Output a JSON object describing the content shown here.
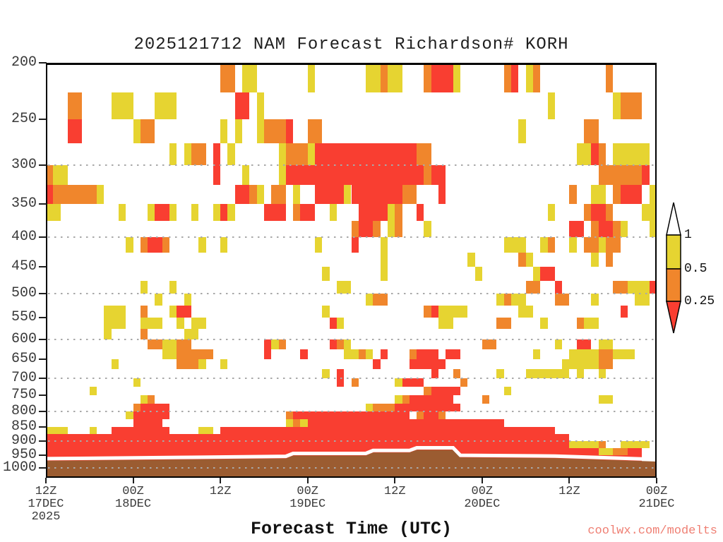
{
  "title": "2025121712 NAM Forecast Richardson# KORH",
  "x_axis": {
    "label": "Forecast Time (UTC)",
    "ticks": [
      {
        "hour": 0,
        "time": "12Z",
        "date": "17DEC",
        "year": "2025"
      },
      {
        "hour": 12,
        "time": "00Z",
        "date": "18DEC"
      },
      {
        "hour": 24,
        "time": "12Z"
      },
      {
        "hour": 36,
        "time": "00Z",
        "date": "19DEC"
      },
      {
        "hour": 48,
        "time": "12Z"
      },
      {
        "hour": 60,
        "time": "00Z",
        "date": "20DEC"
      },
      {
        "hour": 72,
        "time": "12Z"
      },
      {
        "hour": 84,
        "time": "00Z",
        "date": "21DEC"
      }
    ]
  },
  "y_axis": {
    "unit": "hPa",
    "tick_labels": [
      200,
      250,
      300,
      350,
      400,
      450,
      500,
      550,
      600,
      650,
      700,
      750,
      800,
      850,
      900,
      950,
      1000
    ],
    "gridlines": [
      300,
      400,
      500,
      600,
      700,
      800,
      900,
      1000
    ],
    "range": [
      200,
      1040
    ],
    "log_scale": true
  },
  "colorbar": {
    "labels": [
      "1",
      "0.5",
      "0.25"
    ],
    "segment_colors": [
      "#ffffff",
      "#e6d431",
      "#f0862c",
      "#f93e31"
    ]
  },
  "watermark": "coolwx.com/modelts",
  "chart_data": {
    "type": "heatmap",
    "title": "2025121712 NAM Forecast Richardson# KORH",
    "xlabel": "Forecast Time (UTC)",
    "x_start": "2025-12-17 12Z",
    "x_end": "2025-12-21 00Z",
    "hours_per_column": 1,
    "columns": 84,
    "row_top_pressure_hpa": 200,
    "row_step_hpa": 25,
    "rows": 31,
    "legend_thresholds": [
      {
        "symbol": "r",
        "meaning": "Richardson number < 0.25",
        "color": "#f93e31"
      },
      {
        "symbol": "o",
        "meaning": "0.25 - 0.5",
        "color": "#f0862c"
      },
      {
        "symbol": "y",
        "meaning": "0.5 - 1",
        "color": "#e6d431"
      },
      {
        "symbol": ".",
        "meaning": "> 1 (blank)",
        "color": "#ffffff"
      }
    ],
    "grid": [
      "........................oo.yy.......y.......yyoyy...orrry......or.yo.........o......",
      "...oo....yyy...yyy........rr.y.......................................y........yooo..y.yyy",
      "...rr.......yoo.........y.y..yooor..oo...........................y........oo........y",
      ".................y.yoo.r.y......yoooyrrrrrrrrrrrrrroo....................yyro.yyyyy.o",
      "oyy....................r...y....yrrrrrrrrrrrrrrrrrrrorr.....................oooooor.ooo",
      "rooooooy..................rroy.oo.y..rrrryrrrrrrroo...r.................o..yy.orrr.yyyo.",
      "yy........y...yrry..y..yry....rrr.orr..y...rrrryo..r.................y....orro....yy",
      "..........................................orro.yo...y...................rr.orroy...y",
      "...........y.orro....y..y............y....r...y................yyy..yo..y.ooyoo.....",
      "..............................................y...........y......oy........y.o.....",
      "......................................y.......y............y.......yrr.............",
      ".............y...y......................yy........................oo..r.......ooyyyr",
      "...............y...y........................yoo...............yoyy....oo...y.....yy.....",
      "........yyy..o...yrr..................y.............oryyyy.......yy............r",
      "........yyy..yyy..y.yy.................ry.............yy......oo....y....oyy....",
      "........y....o.....yy................................................................",
      "..............ooyyoo..........ryo......roy..................oo........y..rr.yy......yy.",
      "................yyooooo.......r....r.....yyoy.r...orrr.rr..........y....yyyyooyyy...",
      ".........y........oooy..y....................r....rrrrr................yyyyyoo.....",
      "......................................y.r............r..o.....y...yyyyyy.y..y..",
      "............y...........................r.o.....yrrr.....o......................",
      "......y.............................................orrrr......y....................",
      ".............yo.................................yorrrrrr....o...............yy.....",
      "............orrrr...........................yooorrrrrrrrr......................",
      "...........yrrrrr................orrrrrrrrrrrrrrrr.orro....................",
      "............rrrr.................yoyrrrrrrrrrrrrrrrrrrrrrrrrrrr.....................",
      "yyy...y..rrrrrrrr....yy.rrrrrrrrrrrrrrrrrrrrrrrrrrrrrrrrrrrrrrrrrrrrrr..............",
      "rrrrrrrrrrrrrrrrrrrrrrrrrrrrrrrrrrrrrrrrrrrrrrrrrrrrrrrrrrrrrrrrrrrrrrrr...........",
      "rrrrrrrrrrrrrrrrrrrrrrrrrrrrrrrrrrrrrrrrrrrrrrrrrrrrrrrrrrrrrrrrrrrrrrrryyyyo..yyyy",
      "rrrrrrrrrrrrrrrrrrrrrrrrrrrrrrrrrrrrrrrrrrrrrrrrrrrrrrrrrrrrrrrrrrrrrrrrrrrryyoorr",
      "rrrrrrrrrrrrrrrrrrrrrrrrrrrrrrrrrrrrrrrrrrrrrrrrrrrrrrrrrrrrrrrrrrrrrrrrrrrrrrrrrr"
    ],
    "terrain": {
      "meaning": "ground / below-surface mask",
      "color": "#9b5c31",
      "points_hour_pressure": [
        [
          0,
          972
        ],
        [
          20,
          967
        ],
        [
          33,
          963
        ],
        [
          34,
          952
        ],
        [
          44,
          952
        ],
        [
          45,
          941
        ],
        [
          50,
          941
        ],
        [
          51,
          931
        ],
        [
          56,
          931
        ],
        [
          57,
          959
        ],
        [
          70,
          962
        ],
        [
          84,
          975
        ]
      ]
    }
  }
}
